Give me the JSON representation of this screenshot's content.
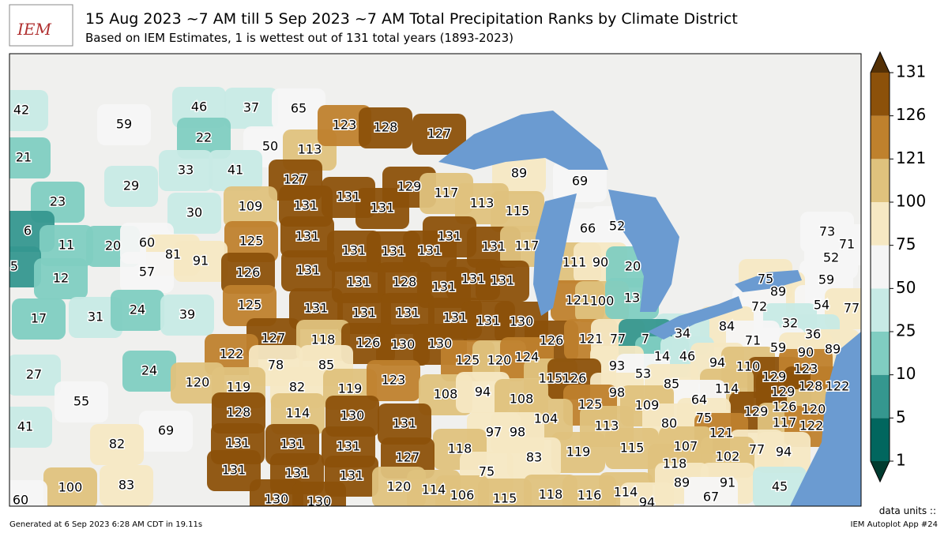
{
  "header": {
    "logo": "IEM",
    "title": "15 Aug 2023 ~7 AM till 5 Sep 2023 ~7 AM Total Precipitation Ranks by Climate District",
    "subtitle": "Based on IEM Estimates, 1 is wettest out of 131 total years (1893-2023)"
  },
  "colorbar": {
    "ticks": [
      1,
      5,
      10,
      25,
      50,
      75,
      100,
      121,
      126,
      131
    ],
    "colors": [
      "#01665e",
      "#35978f",
      "#80cdc1",
      "#c7eae5",
      "#f5f5f5",
      "#f6e8c3",
      "#dfc27d",
      "#bf812d",
      "#8c510a"
    ],
    "under_color": "#003c30",
    "over_color": "#543005"
  },
  "map": {
    "ranks": [
      42,
      59,
      46,
      37,
      65,
      21,
      22,
      50,
      113,
      123,
      128,
      127,
      33,
      41,
      29,
      127,
      89,
      23,
      129,
      117,
      69,
      30,
      109,
      131,
      131,
      131,
      113,
      115,
      6,
      66,
      52,
      11,
      20,
      60,
      131,
      131,
      73,
      71,
      5,
      125,
      131,
      131,
      131,
      131,
      117,
      81,
      91,
      57,
      52,
      111,
      90,
      20,
      12,
      126,
      131,
      131,
      128,
      131,
      131,
      131,
      75,
      59,
      89,
      121,
      100,
      13,
      72,
      54,
      77,
      17,
      31,
      24,
      39,
      125,
      131,
      131,
      131,
      131,
      131,
      130,
      32,
      84,
      34,
      71,
      127,
      118,
      126,
      130,
      130,
      126,
      121,
      77,
      7,
      36,
      59,
      90,
      89,
      14,
      46,
      27,
      24,
      122,
      78,
      85,
      125,
      120,
      124,
      93,
      94,
      110,
      129,
      123,
      53,
      120,
      115,
      126,
      85,
      129,
      128,
      122,
      119,
      82,
      119,
      123,
      108,
      94,
      98,
      114,
      55,
      64,
      126,
      120,
      108,
      125,
      109,
      129,
      128,
      114,
      130,
      41,
      131,
      104,
      75,
      117,
      122,
      69,
      97,
      98,
      113,
      80,
      121,
      131,
      131,
      131,
      82,
      118,
      119,
      115,
      107,
      77,
      94,
      127,
      83,
      118,
      102,
      75,
      131,
      131,
      131,
      100,
      83,
      89,
      91,
      45,
      120,
      114,
      106,
      115,
      118,
      116,
      114,
      67,
      60,
      130,
      130,
      94
    ]
  },
  "footer": {
    "generated": "Generated at 6 Sep 2023 6:28 AM CDT in 19.11s",
    "units": "data units ::",
    "app": "IEM Autoplot App #24"
  }
}
